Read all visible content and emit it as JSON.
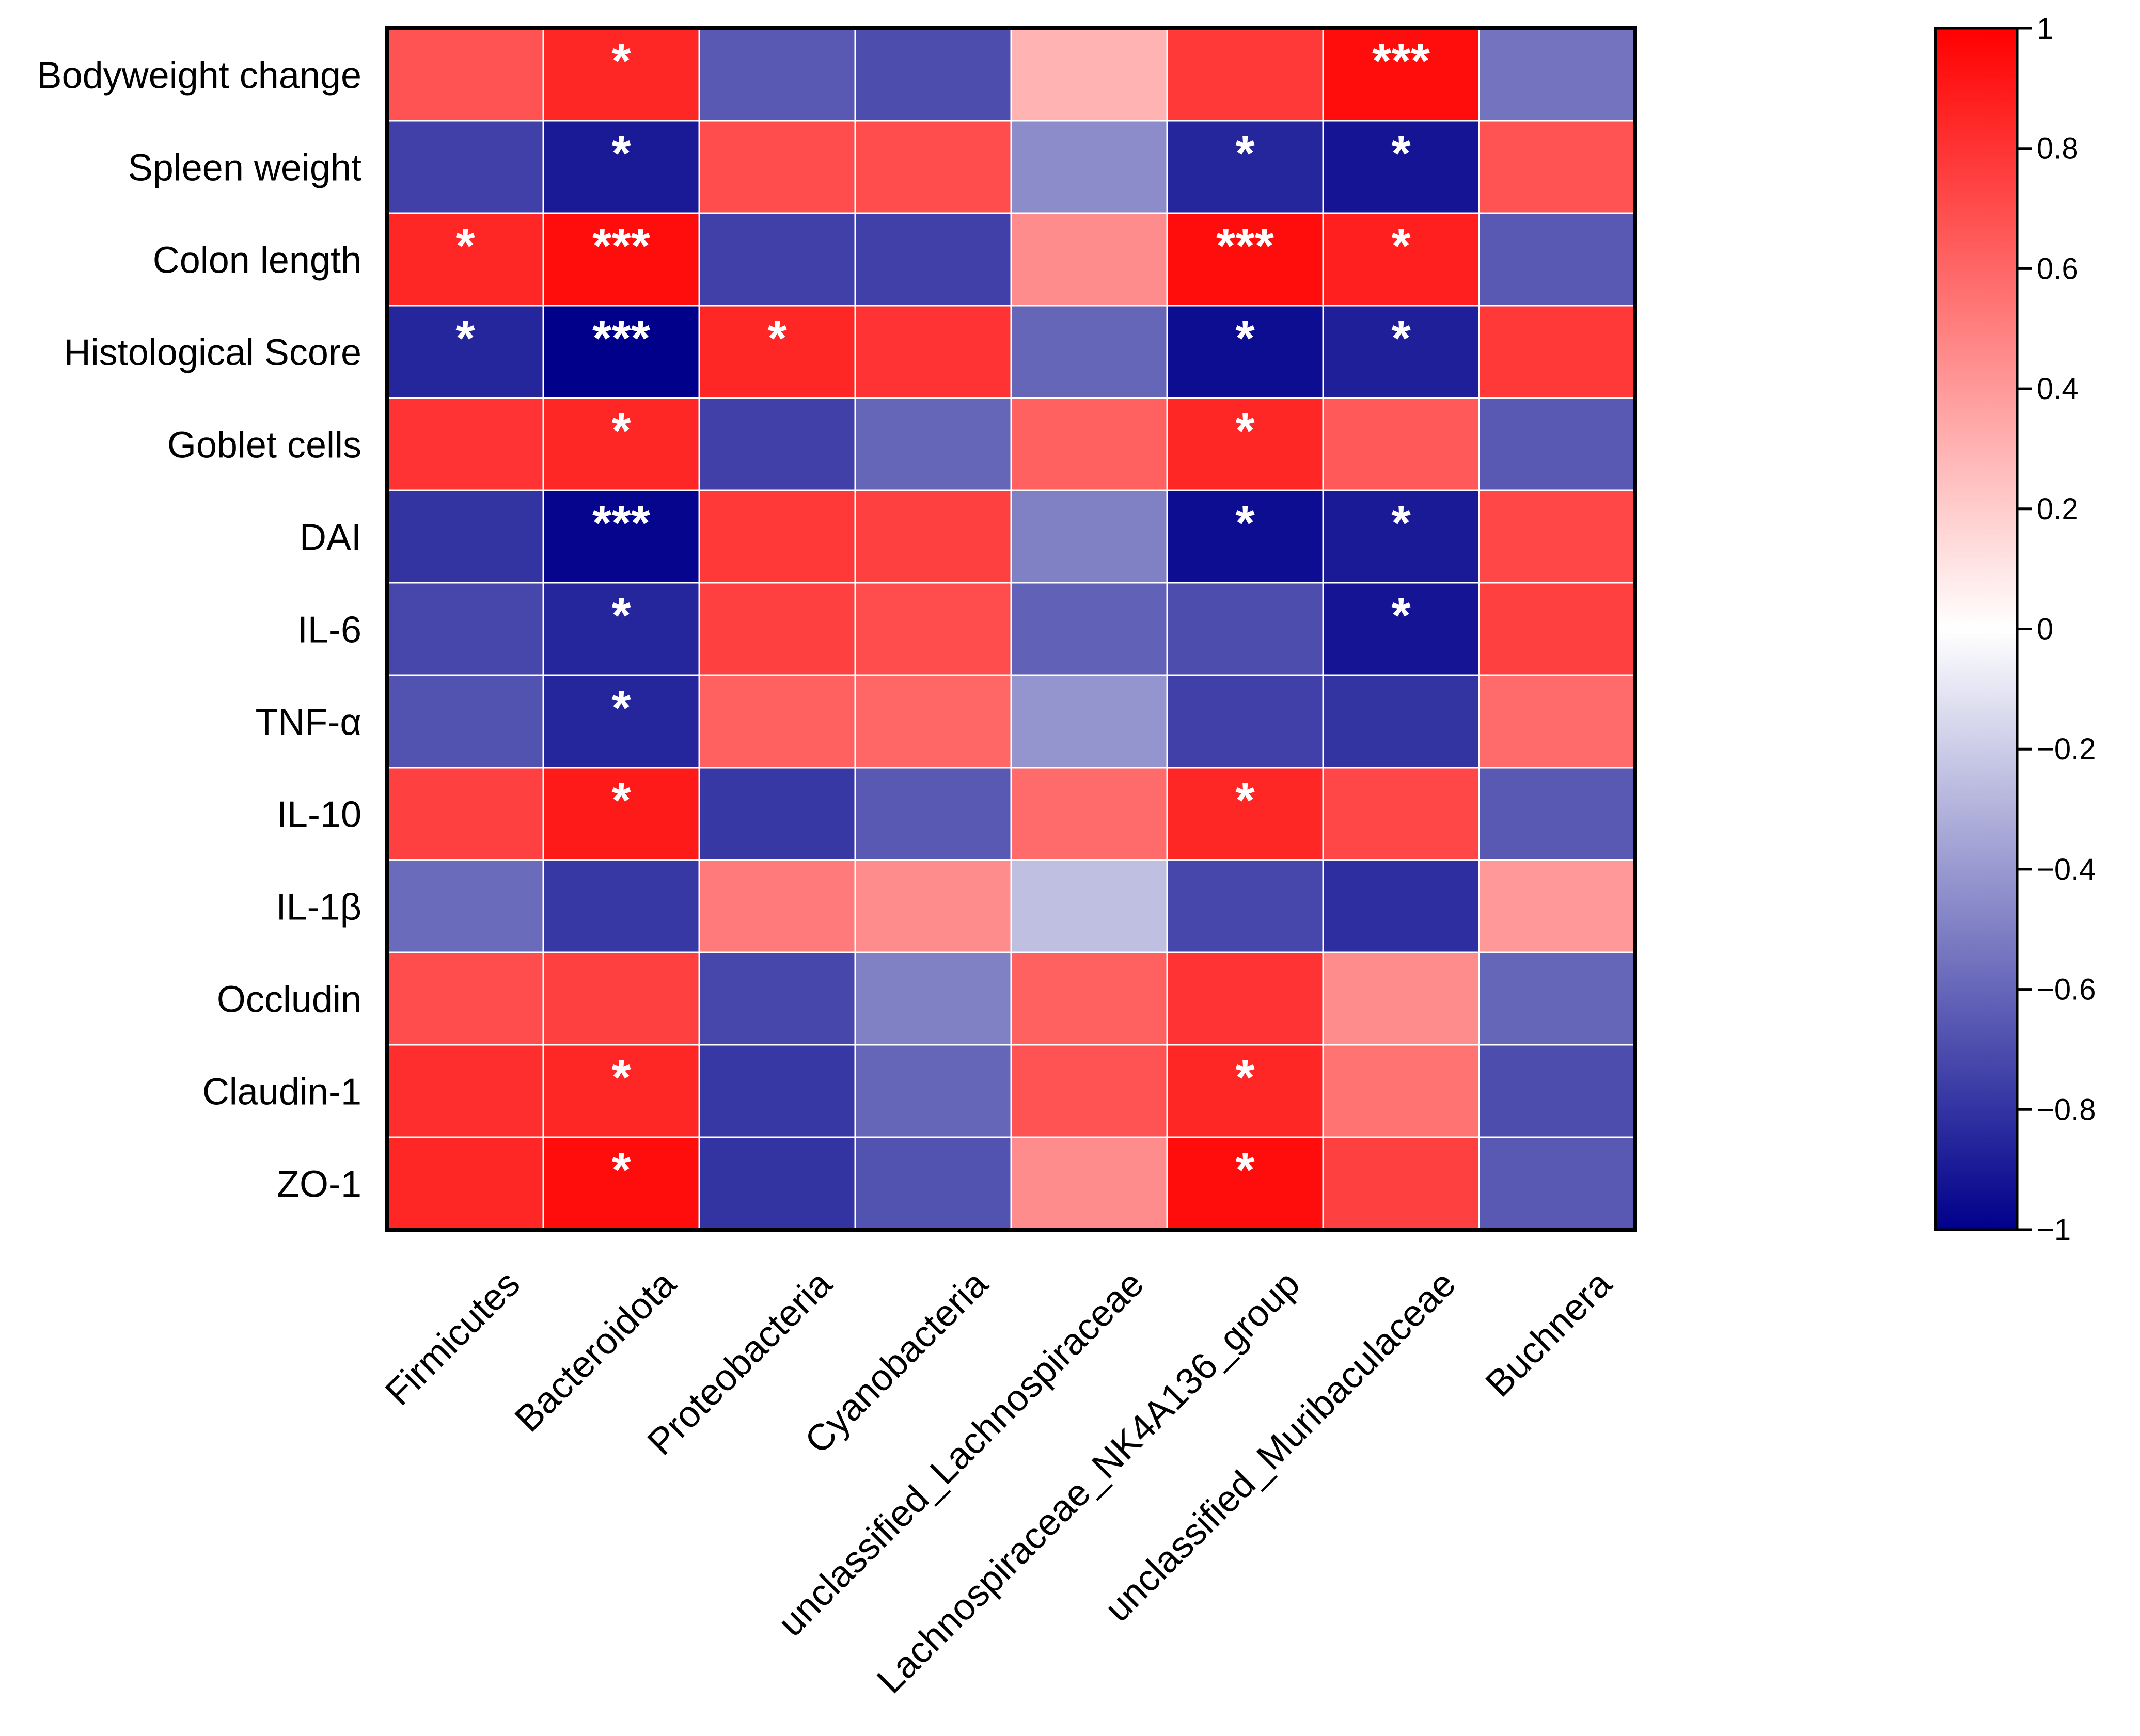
{
  "chart_data": {
    "type": "heatmap",
    "title": "",
    "rows": [
      "Bodyweight change",
      "Spleen weight",
      "Colon length",
      "Histological Score",
      "Goblet cells",
      "DAI",
      "IL-6",
      "TNF-α",
      "IL-10",
      "IL-1β",
      "Occludin",
      "Claudin-1",
      "ZO-1"
    ],
    "columns": [
      "Firmicutes",
      "Bacteroidota",
      "Proteobacteria",
      "Cyanobacteria",
      "unclassified_Lachnospiraceae",
      "Lachnospiraceae_NK4A136_group",
      "unclassified_Muribaculaceae",
      "Buchnera"
    ],
    "values": [
      [
        0.68,
        0.85,
        -0.65,
        -0.7,
        0.3,
        0.78,
        0.95,
        -0.55
      ],
      [
        -0.75,
        -0.9,
        0.7,
        0.7,
        -0.45,
        -0.85,
        -0.92,
        0.68
      ],
      [
        0.85,
        0.95,
        -0.75,
        -0.75,
        0.45,
        0.95,
        0.88,
        -0.65
      ],
      [
        -0.85,
        -1.0,
        0.85,
        0.8,
        -0.6,
        -0.95,
        -0.88,
        0.78
      ],
      [
        0.8,
        0.85,
        -0.75,
        -0.6,
        0.62,
        0.85,
        0.65,
        -0.65
      ],
      [
        -0.8,
        -0.98,
        0.78,
        0.75,
        -0.5,
        -0.95,
        -0.9,
        0.72
      ],
      [
        -0.72,
        -0.85,
        0.75,
        0.7,
        -0.62,
        -0.7,
        -0.92,
        0.75
      ],
      [
        -0.68,
        -0.85,
        0.62,
        0.6,
        -0.42,
        -0.75,
        -0.8,
        0.58
      ],
      [
        0.75,
        0.9,
        -0.78,
        -0.65,
        0.58,
        0.85,
        0.72,
        -0.65
      ],
      [
        -0.58,
        -0.78,
        0.52,
        0.45,
        -0.25,
        -0.72,
        -0.82,
        0.4
      ],
      [
        0.7,
        0.75,
        -0.72,
        -0.5,
        0.62,
        0.8,
        0.45,
        -0.6
      ],
      [
        0.82,
        0.85,
        -0.78,
        -0.6,
        0.68,
        0.85,
        0.55,
        -0.7
      ],
      [
        0.85,
        0.95,
        -0.8,
        -0.68,
        0.45,
        0.95,
        0.75,
        -0.65
      ]
    ],
    "significance": [
      [
        "",
        "*",
        "",
        "",
        "",
        "",
        "***",
        ""
      ],
      [
        "",
        "*",
        "",
        "",
        "",
        "*",
        "*",
        ""
      ],
      [
        "*",
        "***",
        "",
        "",
        "",
        "***",
        "*",
        ""
      ],
      [
        "*",
        "***",
        "*",
        "",
        "",
        "*",
        "*",
        ""
      ],
      [
        "",
        "*",
        "",
        "",
        "",
        "*",
        "",
        ""
      ],
      [
        "",
        "***",
        "",
        "",
        "",
        "*",
        "*",
        ""
      ],
      [
        "",
        "*",
        "",
        "",
        "",
        "",
        "*",
        ""
      ],
      [
        "",
        "*",
        "",
        "",
        "",
        "",
        "",
        ""
      ],
      [
        "",
        "*",
        "",
        "",
        "",
        "*",
        "",
        ""
      ],
      [
        "",
        "",
        "",
        "",
        "",
        "",
        "",
        ""
      ],
      [
        "",
        "",
        "",
        "",
        "",
        "",
        "",
        ""
      ],
      [
        "",
        "*",
        "",
        "",
        "",
        "*",
        "",
        ""
      ],
      [
        "",
        "*",
        "",
        "",
        "",
        "*",
        "",
        ""
      ]
    ],
    "colorbar": {
      "range": [
        -1,
        1
      ],
      "ticks": [
        1,
        0.8,
        0.6,
        0.4,
        0.2,
        0,
        -0.2,
        -0.4,
        -0.6,
        -0.8,
        -1
      ],
      "tick_labels": [
        "1",
        "0.8",
        "0.6",
        "0.4",
        "0.2",
        "0",
        "−0.2",
        "−0.4",
        "−0.6",
        "−0.8",
        "−1"
      ],
      "low_color": "#00008b",
      "mid_color": "#ffffff",
      "high_color": "#ff0000"
    }
  }
}
